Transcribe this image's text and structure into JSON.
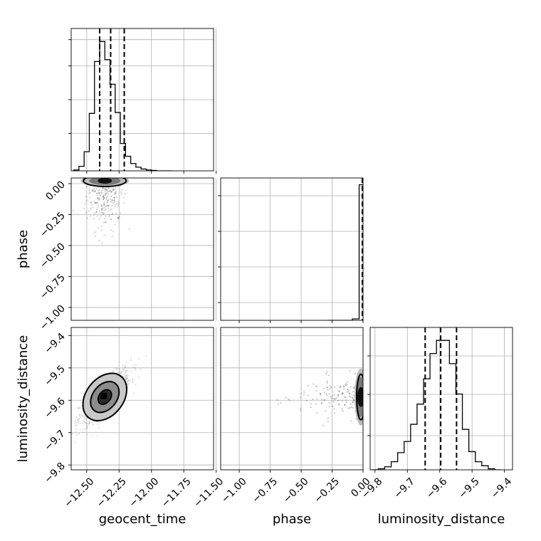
{
  "chart_data": {
    "type": "corner",
    "parameters": [
      "geocent_time",
      "phase",
      "luminosity_distance"
    ],
    "axis_labels": {
      "geocent_time": "geocent_time",
      "phase": "phase",
      "luminosity_distance": "luminosity_distance"
    },
    "ranges": {
      "geocent_time": [
        -12.62,
        -11.52
      ],
      "phase": [
        -1.15,
        0.0
      ],
      "luminosity_distance": [
        -9.815,
        -9.375
      ]
    },
    "ticks": {
      "geocent_time": [
        -12.5,
        -12.25,
        -12.0,
        -11.75,
        -11.5
      ],
      "phase_x": [
        -1.0,
        -0.75,
        -0.5,
        -0.25,
        0.0
      ],
      "phase_y": [
        0.0,
        -0.25,
        -0.5,
        -0.75,
        -1.0
      ],
      "luminosity_distance_x": [
        -9.8,
        -9.7,
        -9.6,
        -9.5,
        -9.4
      ],
      "luminosity_distance_y": [
        -9.4,
        -9.5,
        -9.6,
        -9.7,
        -9.8
      ]
    },
    "tick_labels": {
      "geocent_time": [
        "−12.50",
        "−12.25",
        "−12.00",
        "−11.75",
        "−11.50"
      ],
      "phase_x": [
        "−1.00",
        "−0.75",
        "−0.50",
        "−0.25",
        "0.00"
      ],
      "phase_y": [
        "0.00",
        "−0.25",
        "−0.50",
        "−0.75",
        "−1.00"
      ],
      "luminosity_distance_x": [
        "−9.8",
        "−9.7",
        "−9.6",
        "−9.5",
        "−9.4"
      ],
      "luminosity_distance_y": [
        "−9.4",
        "−9.5",
        "−9.6",
        "−9.7",
        "−9.8"
      ]
    },
    "marginals": {
      "geocent_time": {
        "bin_edges": [
          -12.6,
          -12.56,
          -12.52,
          -12.48,
          -12.44,
          -12.4,
          -12.36,
          -12.32,
          -12.28,
          -12.24,
          -12.2,
          -12.16,
          -12.12,
          -12.08,
          -12.04,
          -12.0,
          -11.96,
          -11.92,
          -11.88,
          -11.84
        ],
        "counts": [
          1,
          5,
          21,
          63,
          120,
          142,
          122,
          95,
          64,
          30,
          16,
          8,
          4,
          2,
          1,
          0.5,
          0,
          0,
          0
        ],
        "quantiles": [
          -12.4,
          -12.315,
          -12.21
        ]
      },
      "phase": {
        "bin_edges": [
          -0.04,
          -0.02,
          0.0
        ],
        "counts": [
          0.5,
          190
        ],
        "quantiles": [
          -0.002,
          -0.001,
          0.0
        ]
      },
      "luminosity_distance": {
        "bin_edges": [
          -9.81,
          -9.79,
          -9.77,
          -9.75,
          -9.73,
          -9.71,
          -9.69,
          -9.67,
          -9.65,
          -9.63,
          -9.61,
          -9.59,
          -9.57,
          -9.55,
          -9.53,
          -9.51,
          -9.49,
          -9.47,
          -9.45,
          -9.43,
          -9.41
        ],
        "counts": [
          0,
          1,
          3,
          8,
          17,
          28,
          45,
          65,
          90,
          115,
          128,
          128,
          105,
          75,
          40,
          18,
          8,
          4,
          1,
          0
        ],
        "quantiles": [
          -9.645,
          -9.597,
          -9.548
        ]
      }
    },
    "joint": {
      "geocent_time_vs_luminosity_distance": {
        "center": [
          -12.36,
          -9.59
        ],
        "contours": [
          {
            "level": 1,
            "rx": 0.08,
            "ry": 0.032
          },
          {
            "level": 2,
            "rx": 0.17,
            "ry": 0.068
          },
          {
            "level": 3,
            "rx": 0.26,
            "ry": 0.105
          }
        ]
      },
      "geocent_time_vs_phase": {
        "center": [
          -12.36,
          -0.015
        ]
      },
      "phase_vs_luminosity_distance": {
        "center": [
          -0.005,
          -9.59
        ]
      }
    },
    "grid": true
  }
}
